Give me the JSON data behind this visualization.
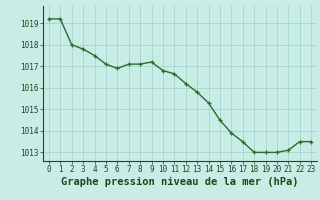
{
  "x": [
    0,
    1,
    2,
    3,
    4,
    5,
    6,
    7,
    8,
    9,
    10,
    11,
    12,
    13,
    14,
    15,
    16,
    17,
    18,
    19,
    20,
    21,
    22,
    23
  ],
  "y": [
    1019.2,
    1019.2,
    1018.0,
    1017.8,
    1017.5,
    1017.1,
    1016.9,
    1017.1,
    1017.1,
    1017.2,
    1016.8,
    1016.65,
    1016.2,
    1015.8,
    1015.3,
    1014.5,
    1013.9,
    1013.5,
    1013.0,
    1013.0,
    1013.0,
    1013.1,
    1013.5,
    1013.5
  ],
  "line_color": "#2d6b2d",
  "marker_color": "#2d6b2d",
  "bg_color": "#c8ece6",
  "grid_color": "#a8d4ce",
  "xlabel": "Graphe pression niveau de la mer (hPa)",
  "xlabel_color": "#1a4a1a",
  "ylim_min": 1012.6,
  "ylim_max": 1019.8,
  "yticks": [
    1013,
    1014,
    1015,
    1016,
    1017,
    1018,
    1019
  ],
  "xticks": [
    0,
    1,
    2,
    3,
    4,
    5,
    6,
    7,
    8,
    9,
    10,
    11,
    12,
    13,
    14,
    15,
    16,
    17,
    18,
    19,
    20,
    21,
    22,
    23
  ],
  "tick_color": "#1a4a1a",
  "tick_fontsize": 5.5,
  "xlabel_fontsize": 7.5,
  "linewidth": 1.0,
  "markersize": 3.5
}
